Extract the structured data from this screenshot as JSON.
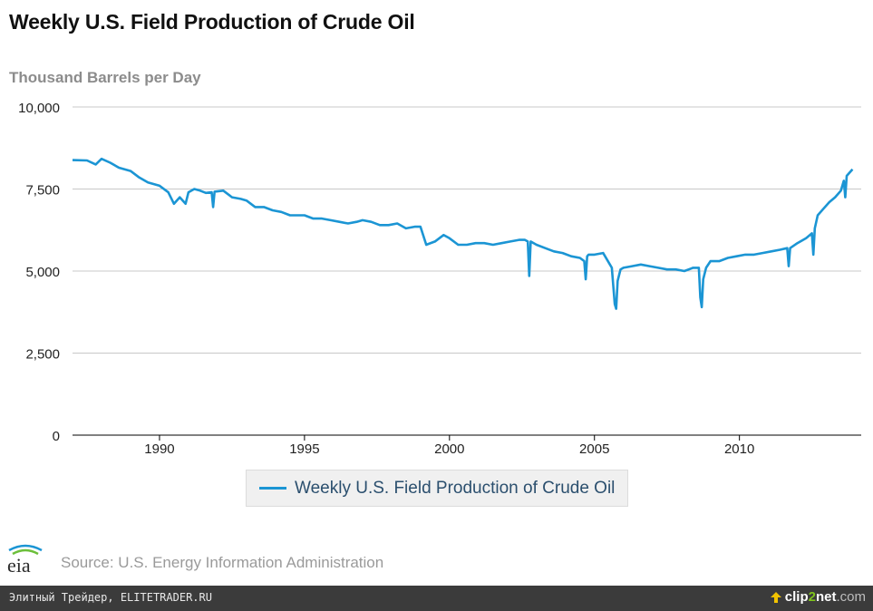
{
  "title": "Weekly U.S. Field Production of Crude Oil",
  "source": "Source: U.S. Energy Information Administration",
  "logo_text": "eia",
  "footer": {
    "left_text": "Элитный Трейдер, ELITETRADER.RU",
    "brand_a": "clip",
    "brand_b": "2",
    "brand_c": "net",
    "brand_d": ".com"
  },
  "colors": {
    "series": "#1b95d4",
    "grid": "#c8c8c8",
    "legend_bg": "#f0f0f0"
  },
  "chart_data": {
    "type": "line",
    "title": "Weekly U.S. Field Production of Crude Oil",
    "ylabel": "Thousand Barrels per Day",
    "xlabel": "",
    "xlim": [
      1987.0,
      2014.2
    ],
    "ylim": [
      0,
      10000
    ],
    "x_ticks": [
      1990,
      1995,
      2000,
      2005,
      2010
    ],
    "x_tick_labels": [
      "1990",
      "1995",
      "2000",
      "2005",
      "2010"
    ],
    "y_ticks": [
      0,
      2500,
      5000,
      7500,
      10000
    ],
    "y_tick_labels": [
      "0",
      "2,500",
      "5,000",
      "7,500",
      "10,000"
    ],
    "grid": "horizontal",
    "legend_position": "bottom-center",
    "series": [
      {
        "name": "Weekly U.S. Field Production of Crude Oil",
        "x": [
          1987.0,
          1987.5,
          1987.8,
          1988.0,
          1988.3,
          1988.6,
          1989.0,
          1989.3,
          1989.6,
          1990.0,
          1990.3,
          1990.5,
          1990.7,
          1990.9,
          1991.0,
          1991.2,
          1991.4,
          1991.6,
          1991.8,
          1991.85,
          1991.9,
          1992.2,
          1992.5,
          1992.8,
          1993.0,
          1993.3,
          1993.6,
          1993.9,
          1994.2,
          1994.5,
          1994.8,
          1995.0,
          1995.3,
          1995.6,
          1995.9,
          1996.2,
          1996.5,
          1996.8,
          1997.0,
          1997.3,
          1997.6,
          1997.9,
          1998.2,
          1998.5,
          1998.8,
          1999.0,
          1999.2,
          1999.5,
          1999.8,
          2000.0,
          2000.3,
          2000.6,
          2000.9,
          2001.2,
          2001.5,
          2001.8,
          2002.1,
          2002.4,
          2002.6,
          2002.7,
          2002.75,
          2002.8,
          2003.0,
          2003.3,
          2003.6,
          2003.9,
          2004.2,
          2004.5,
          2004.65,
          2004.7,
          2004.75,
          2004.8,
          2005.0,
          2005.3,
          2005.5,
          2005.6,
          2005.7,
          2005.75,
          2005.8,
          2005.9,
          2006.0,
          2006.3,
          2006.6,
          2006.9,
          2007.2,
          2007.5,
          2007.8,
          2008.1,
          2008.4,
          2008.6,
          2008.65,
          2008.7,
          2008.75,
          2008.85,
          2009.0,
          2009.3,
          2009.6,
          2009.9,
          2010.2,
          2010.5,
          2010.8,
          2011.1,
          2011.4,
          2011.65,
          2011.7,
          2011.75,
          2012.0,
          2012.3,
          2012.5,
          2012.55,
          2012.6,
          2012.7,
          2012.9,
          2013.1,
          2013.3,
          2013.5,
          2013.6,
          2013.65,
          2013.7,
          2013.9
        ],
        "values": [
          8380,
          8370,
          8250,
          8420,
          8300,
          8150,
          8050,
          7850,
          7700,
          7600,
          7400,
          7050,
          7250,
          7050,
          7400,
          7500,
          7450,
          7380,
          7400,
          6950,
          7420,
          7450,
          7250,
          7200,
          7150,
          6950,
          6950,
          6850,
          6800,
          6700,
          6700,
          6700,
          6600,
          6600,
          6550,
          6500,
          6450,
          6500,
          6550,
          6500,
          6400,
          6400,
          6450,
          6300,
          6350,
          6350,
          5800,
          5900,
          6100,
          6000,
          5800,
          5800,
          5850,
          5850,
          5800,
          5850,
          5900,
          5950,
          5950,
          5900,
          4850,
          5900,
          5800,
          5700,
          5600,
          5550,
          5450,
          5400,
          5300,
          4750,
          5450,
          5500,
          5500,
          5550,
          5250,
          5100,
          4000,
          3850,
          4700,
          5050,
          5100,
          5150,
          5200,
          5150,
          5100,
          5050,
          5050,
          5000,
          5100,
          5100,
          4200,
          3900,
          4750,
          5100,
          5300,
          5300,
          5400,
          5450,
          5500,
          5500,
          5550,
          5600,
          5650,
          5700,
          5150,
          5700,
          5850,
          6000,
          6150,
          5500,
          6300,
          6700,
          6900,
          7100,
          7250,
          7450,
          7750,
          7250,
          7900,
          8100
        ]
      }
    ]
  }
}
